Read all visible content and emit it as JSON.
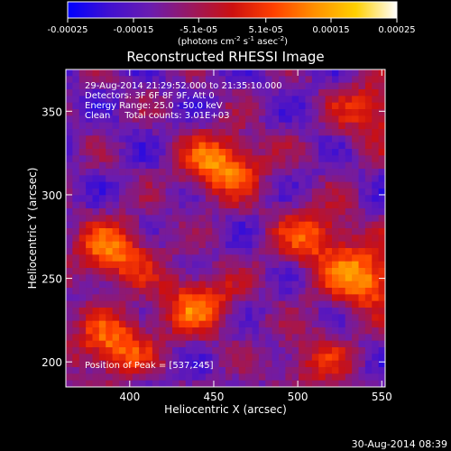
{
  "colorbar": {
    "tick_labels": [
      "-0.00025",
      "-0.00015",
      "-5.1e-05",
      "5.1e-05",
      "0.00015",
      "0.00025"
    ],
    "range": [
      -0.00025,
      0.00025
    ],
    "unit_prefix": "(photons cm",
    "unit_exp1": "-2",
    "unit_mid": " s",
    "unit_exp2": "-1",
    "unit_mid2": " asec",
    "unit_exp3": "-2",
    "unit_suffix": ")",
    "colors": [
      "#0000ff",
      "#4010d0",
      "#6a1cb0",
      "#9a1860",
      "#cc1010",
      "#ff4000",
      "#ff9000",
      "#ffd000",
      "#ffffff"
    ]
  },
  "chart_data": {
    "type": "heatmap",
    "title": "Reconstructed RHESSI Image",
    "xlabel": "Heliocentric X (arcsec)",
    "ylabel": "Heliocentric Y (arcsec)",
    "xlim": [
      362,
      552
    ],
    "ylim": [
      185,
      375
    ],
    "xticks": [
      400,
      450,
      500,
      550
    ],
    "yticks": [
      200,
      250,
      300,
      350
    ],
    "annotations": [
      "29-Aug-2014 21:29:52.000 to 21:35:10.000",
      "Detectors: 3F 6F 8F 9F, Att 0",
      "Energy Range: 25.0 - 50.0 keV",
      "Clean     Total counts: 3.01E+03"
    ],
    "peak_label": "Position of Peak = [537,245]",
    "peak": [
      537,
      245
    ],
    "emission_sources": [
      {
        "x": 455,
        "y": 318,
        "peak": 0.00025
      },
      {
        "x": 390,
        "y": 265,
        "peak": 0.00022
      },
      {
        "x": 540,
        "y": 250,
        "peak": 0.00025
      },
      {
        "x": 510,
        "y": 275,
        "peak": 0.00018
      },
      {
        "x": 440,
        "y": 235,
        "peak": 0.0002
      },
      {
        "x": 390,
        "y": 210,
        "peak": 0.00022
      },
      {
        "x": 545,
        "y": 350,
        "peak": 0.00016
      },
      {
        "x": 510,
        "y": 200,
        "peak": 0.00012
      }
    ]
  },
  "footer": {
    "timestamp": "30-Aug-2014 08:39"
  }
}
